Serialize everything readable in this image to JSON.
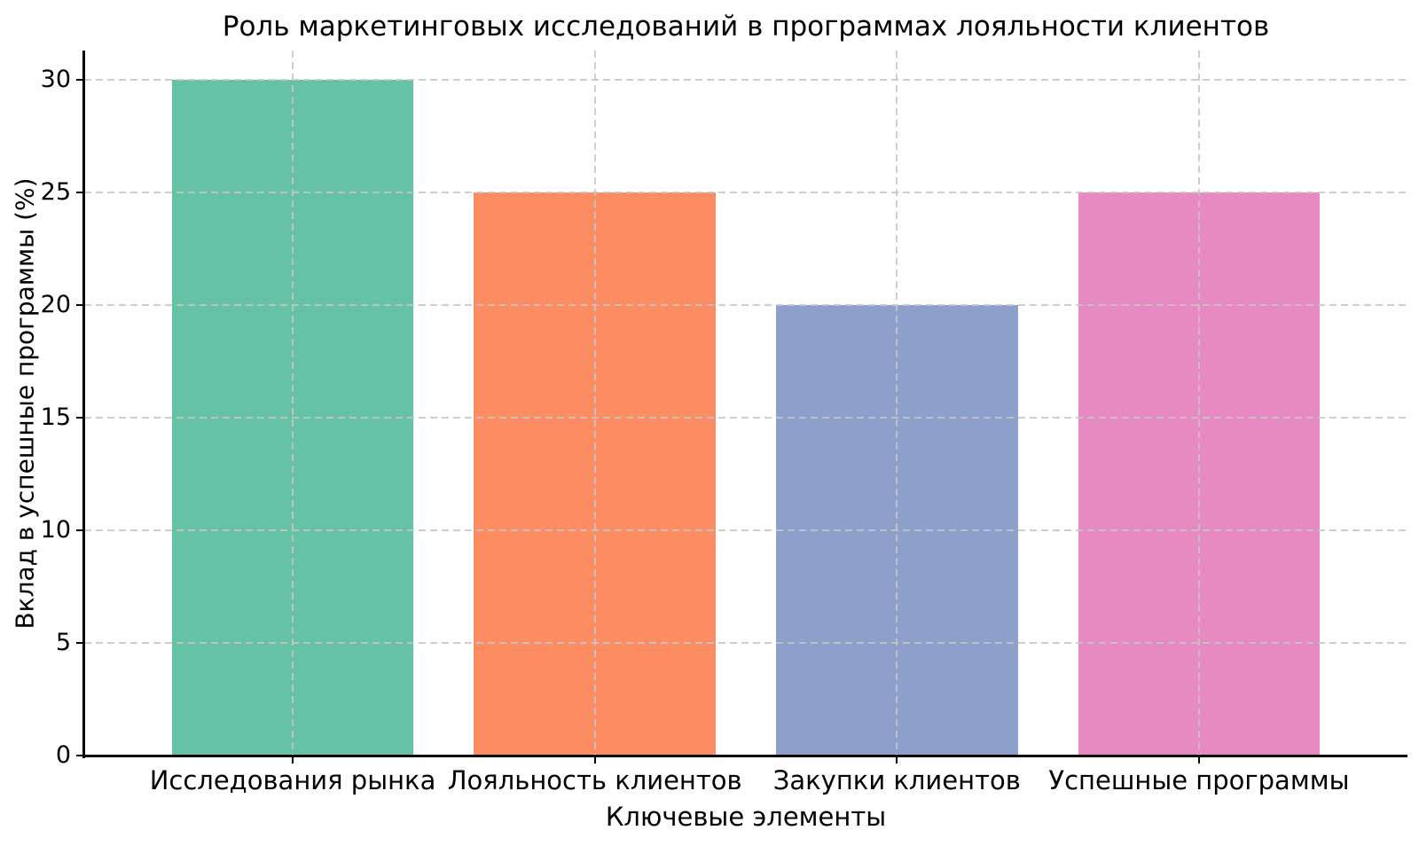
{
  "chart_data": {
    "type": "bar",
    "title": "Роль маркетинговых исследований в программах лояльности клиентов",
    "xlabel": "Ключевые элементы",
    "ylabel": "Вклад в успешные программы (%)",
    "categories": [
      "Исследования рынка",
      "Лояльность клиентов",
      "Закупки клиентов",
      "Успешные программы"
    ],
    "values": [
      30,
      25,
      20,
      25
    ],
    "bar_colors": [
      "#66c2a5",
      "#fc8d62",
      "#8da0cb",
      "#e78ac3"
    ],
    "yticks": [
      0,
      5,
      10,
      15,
      20,
      25,
      30
    ],
    "ylim": [
      0,
      31.3
    ],
    "bar_width_fraction": 0.8,
    "grid": "dashed",
    "grid_color": "#c6c6c6",
    "axis_color": "#000000",
    "text_color": "#000000",
    "background_color": "#ffffff",
    "legend_position": "none"
  }
}
